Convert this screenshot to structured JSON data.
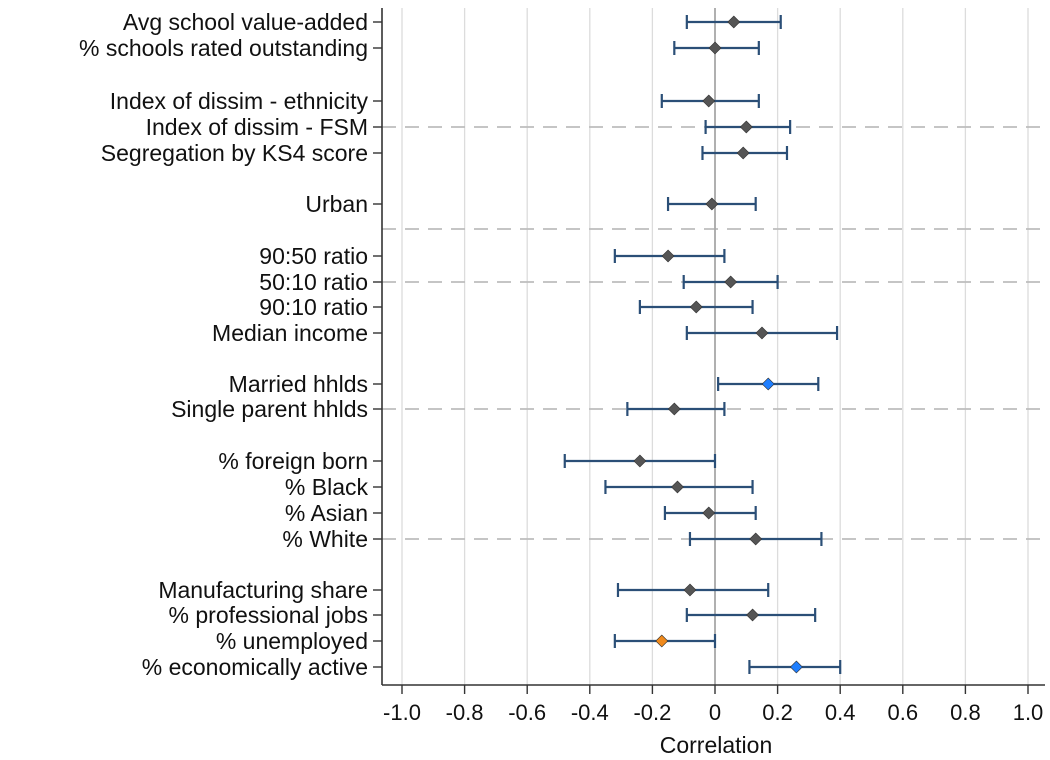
{
  "chart_data": {
    "type": "scatter",
    "subtype": "coefficient-plot-horizontal-with-confidence-intervals",
    "xlabel": "Correlation",
    "xlim": [
      -1.0,
      1.0
    ],
    "xticks": [
      -1.0,
      -0.8,
      -0.6,
      -0.4,
      -0.2,
      0,
      0.2,
      0.4,
      0.6,
      0.8,
      1.0
    ],
    "xtick_labels": [
      "-1.0",
      "-0.8",
      "-0.6",
      "-0.4",
      "-0.2",
      "0",
      "0.2",
      "0.4",
      "0.6",
      "0.8",
      "1.0"
    ],
    "grid": "vertical",
    "reference_line_x": 0,
    "colors": {
      "default_marker": "#555555",
      "positive_significant": "#1f7fff",
      "negative_significant": "#f08a1c",
      "ci": "#2b4f77",
      "grid": "#dcdcdc",
      "separator": "#bdbdbd"
    },
    "rows": [
      {
        "label": "Avg school value-added",
        "estimate": 0.06,
        "ci_low": -0.09,
        "ci_high": 0.21,
        "marker": "default"
      },
      {
        "label": "% schools rated outstanding",
        "estimate": 0.0,
        "ci_low": -0.13,
        "ci_high": 0.14,
        "marker": "default"
      },
      {
        "label": "Index of dissim - ethnicity",
        "estimate": -0.02,
        "ci_low": -0.17,
        "ci_high": 0.14,
        "marker": "default"
      },
      {
        "label": "Index of dissim - FSM",
        "estimate": 0.1,
        "ci_low": -0.03,
        "ci_high": 0.24,
        "marker": "default"
      },
      {
        "label": "Segregation by KS4 score",
        "estimate": 0.09,
        "ci_low": -0.04,
        "ci_high": 0.23,
        "marker": "default"
      },
      {
        "label": "Urban",
        "estimate": -0.01,
        "ci_low": -0.15,
        "ci_high": 0.13,
        "marker": "default"
      },
      {
        "label": "90:50 ratio",
        "estimate": -0.15,
        "ci_low": -0.32,
        "ci_high": 0.03,
        "marker": "default"
      },
      {
        "label": "50:10 ratio",
        "estimate": 0.05,
        "ci_low": -0.1,
        "ci_high": 0.2,
        "marker": "default"
      },
      {
        "label": "90:10 ratio",
        "estimate": -0.06,
        "ci_low": -0.24,
        "ci_high": 0.12,
        "marker": "default"
      },
      {
        "label": "Median income",
        "estimate": 0.15,
        "ci_low": -0.09,
        "ci_high": 0.39,
        "marker": "default"
      },
      {
        "label": "Married hhlds",
        "estimate": 0.17,
        "ci_low": 0.01,
        "ci_high": 0.33,
        "marker": "positive_significant"
      },
      {
        "label": "Single parent hhlds",
        "estimate": -0.13,
        "ci_low": -0.28,
        "ci_high": 0.03,
        "marker": "default"
      },
      {
        "label": "% foreign born",
        "estimate": -0.24,
        "ci_low": -0.48,
        "ci_high": 0.0,
        "marker": "default"
      },
      {
        "label": "% Black",
        "estimate": -0.12,
        "ci_low": -0.35,
        "ci_high": 0.12,
        "marker": "default"
      },
      {
        "label": "% Asian",
        "estimate": -0.02,
        "ci_low": -0.16,
        "ci_high": 0.13,
        "marker": "default"
      },
      {
        "label": "% White",
        "estimate": 0.13,
        "ci_low": -0.08,
        "ci_high": 0.34,
        "marker": "default"
      },
      {
        "label": "Manufacturing share",
        "estimate": -0.08,
        "ci_low": -0.31,
        "ci_high": 0.17,
        "marker": "default"
      },
      {
        "label": "% professional jobs",
        "estimate": 0.12,
        "ci_low": -0.09,
        "ci_high": 0.32,
        "marker": "default"
      },
      {
        "label": "% unemployed",
        "estimate": -0.17,
        "ci_low": -0.32,
        "ci_high": 0.0,
        "marker": "negative_significant"
      },
      {
        "label": "% economically active",
        "estimate": 0.26,
        "ci_low": 0.11,
        "ci_high": 0.4,
        "marker": "positive_significant"
      }
    ]
  }
}
